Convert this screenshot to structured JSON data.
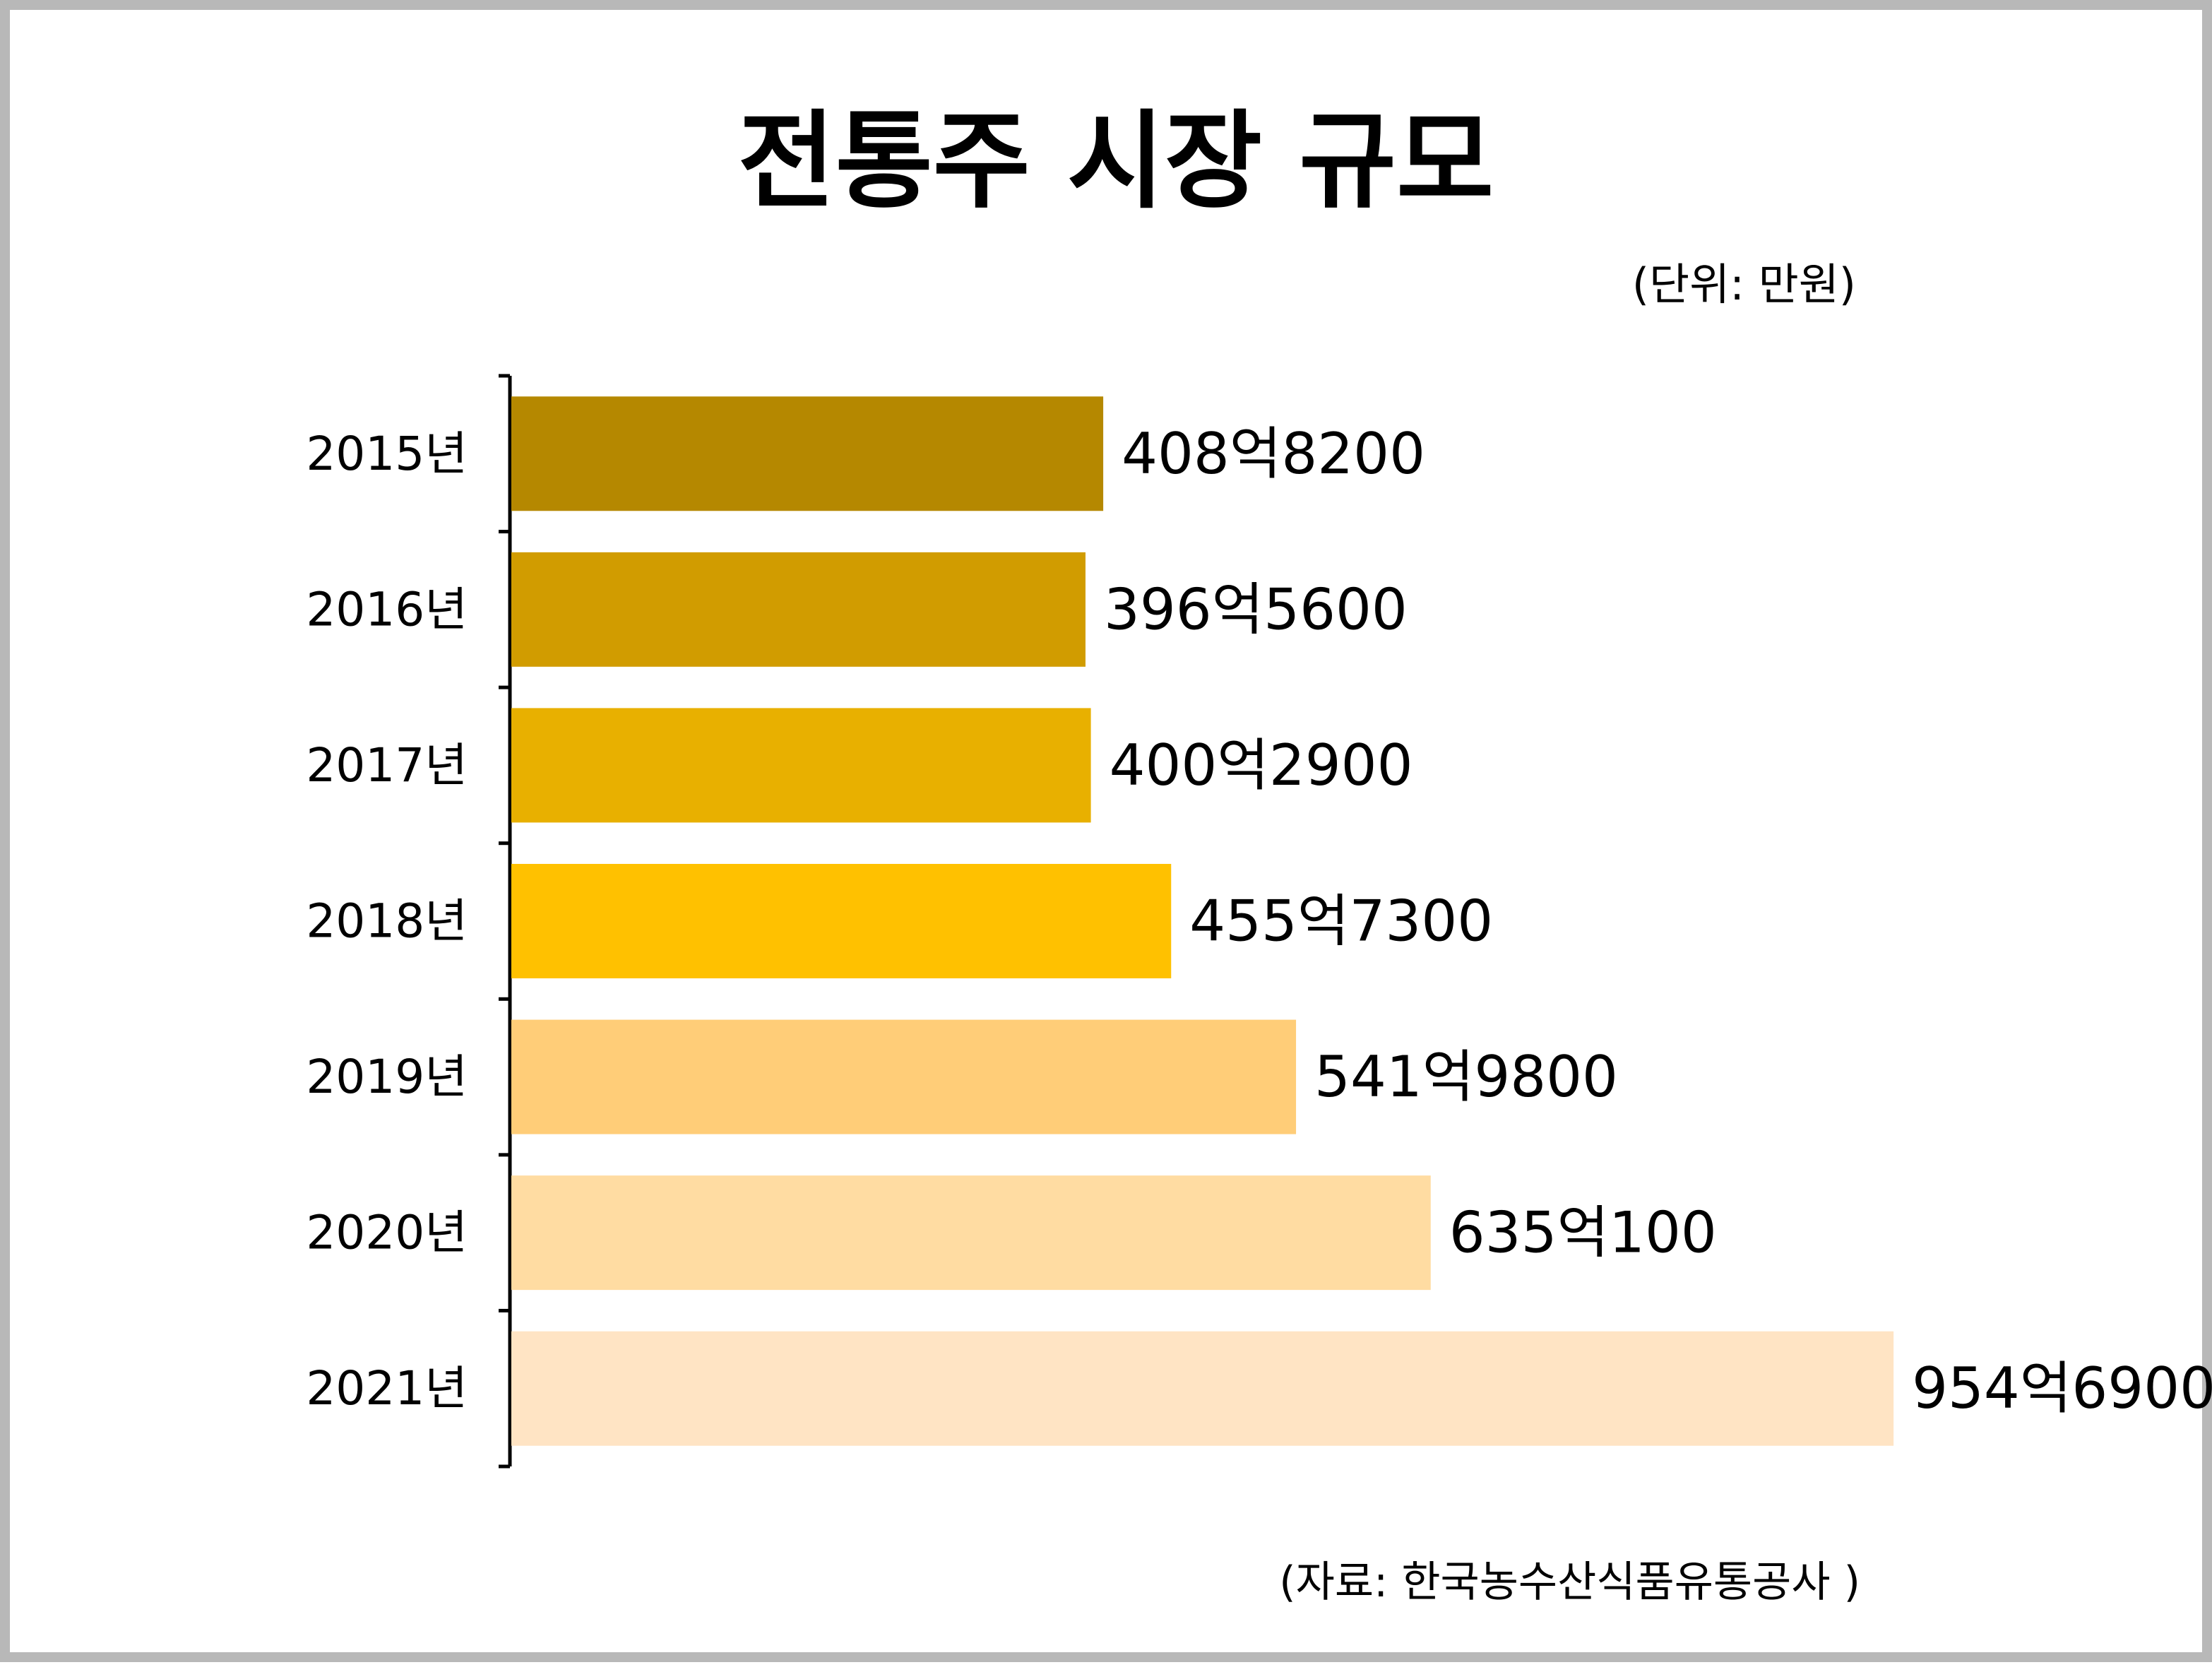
{
  "title": "전통주 시장 규모",
  "unit_label": "(단위: 만원)",
  "source_label": "(자료: 한국농수산식품유통공사 )",
  "chart_data": {
    "type": "bar",
    "orientation": "horizontal",
    "title": "전통주 시장 규모",
    "unit": "(단위: 만원)",
    "categories": [
      "2015년",
      "2016년",
      "2017년",
      "2018년",
      "2019년",
      "2020년",
      "2021년"
    ],
    "values": [
      4088200,
      3965600,
      4002900,
      4557300,
      5419800,
      6350100,
      9546900
    ],
    "value_labels": [
      "408억8200",
      "396억5600",
      "400억2900",
      "455억7300",
      "541억9800",
      "635억100",
      "954억6900"
    ],
    "colors": [
      "#b58800",
      "#d19c00",
      "#e8b000",
      "#ffc100",
      "#ffcd78",
      "#ffdca2",
      "#ffe4c4"
    ],
    "xlim": [
      0,
      10000000
    ],
    "grid": false,
    "legend": "none"
  }
}
